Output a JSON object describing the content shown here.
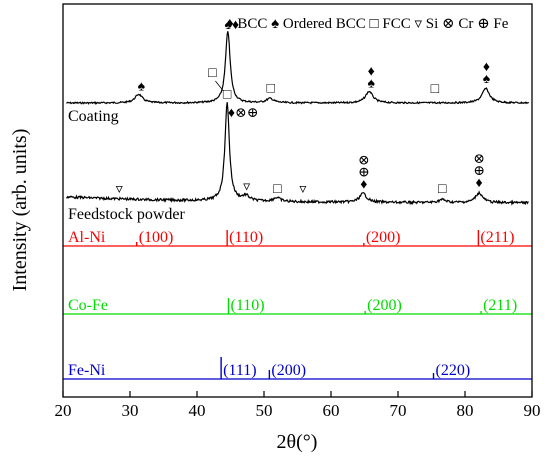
{
  "chart_data": {
    "type": "line",
    "xlabel": "2θ(°)",
    "ylabel": "Intensity (arb. units)",
    "xlim": [
      20,
      90
    ],
    "xticks": [
      "20",
      "30",
      "40",
      "50",
      "60",
      "70",
      "80",
      "90"
    ],
    "legend": {
      "placement": "top",
      "entries": [
        {
          "symbol": "♦",
          "label": "BCC"
        },
        {
          "symbol": "♠",
          "label": "Ordered BCC"
        },
        {
          "symbol": "□",
          "label": "FCC"
        },
        {
          "symbol": "▿",
          "label": "Si"
        },
        {
          "symbol": "⊗",
          "label": "Cr"
        },
        {
          "symbol": "⊕",
          "label": "Fe"
        }
      ]
    },
    "patterns": [
      {
        "label": "Coating",
        "color": "#000000",
        "peaks": [
          {
            "x": 31.3,
            "h": 0.12
          },
          {
            "x": 44.6,
            "h": 1.0
          },
          {
            "x": 50.9,
            "h": 0.06
          },
          {
            "x": 65.7,
            "h": 0.16
          },
          {
            "x": 83.1,
            "h": 0.2
          }
        ],
        "markers": [
          {
            "x": 31.7,
            "symbols": "♠"
          },
          {
            "x": 42.3,
            "symbols": "□"
          },
          {
            "x": 45.3,
            "symbols": "♠♦"
          },
          {
            "x": 51.0,
            "symbols": "□"
          },
          {
            "x": 66.0,
            "symbols": "♦♠"
          },
          {
            "x": 75.5,
            "symbols": "□"
          },
          {
            "x": 83.2,
            "symbols": "♦♠"
          }
        ]
      },
      {
        "label": "Feedstock powder",
        "color": "#000000",
        "peaks": [
          {
            "x": 44.5,
            "h": 1.0
          },
          {
            "x": 47.3,
            "h": 0.05
          },
          {
            "x": 51.9,
            "h": 0.04
          },
          {
            "x": 64.8,
            "h": 0.09
          },
          {
            "x": 76.6,
            "h": 0.03
          },
          {
            "x": 82.1,
            "h": 0.1
          }
        ],
        "markers": [
          {
            "x": 28.4,
            "symbols": "▿"
          },
          {
            "x": 44.5,
            "symbols": "□"
          },
          {
            "x": 45.5,
            "symbols": "♦⊗⊕"
          },
          {
            "x": 47.4,
            "symbols": "▿"
          },
          {
            "x": 52.0,
            "symbols": "□"
          },
          {
            "x": 55.8,
            "symbols": "▿"
          },
          {
            "x": 64.9,
            "symbols": "⊗⊕♦"
          },
          {
            "x": 76.6,
            "symbols": "□"
          },
          {
            "x": 82.1,
            "symbols": "⊗⊕♦"
          }
        ]
      }
    ],
    "references": [
      {
        "name": "Al-Ni",
        "color": "#ff0000",
        "lines": [
          {
            "x": 31.0,
            "hkl": "(100)"
          },
          {
            "x": 44.5,
            "hkl": "(110)"
          },
          {
            "x": 64.9,
            "hkl": "(200)"
          },
          {
            "x": 82.0,
            "hkl": "(211)"
          }
        ]
      },
      {
        "name": "Co-Fe",
        "color": "#00dd00",
        "lines": [
          {
            "x": 44.7,
            "hkl": "(110)"
          },
          {
            "x": 65.1,
            "hkl": "(200)"
          },
          {
            "x": 82.4,
            "hkl": "(211)"
          }
        ]
      },
      {
        "name": "Fe-Ni",
        "color": "#0000cc",
        "lines": [
          {
            "x": 43.6,
            "hkl": "(111)"
          },
          {
            "x": 50.8,
            "hkl": "(200)"
          },
          {
            "x": 75.3,
            "hkl": "(220)"
          }
        ]
      }
    ]
  }
}
